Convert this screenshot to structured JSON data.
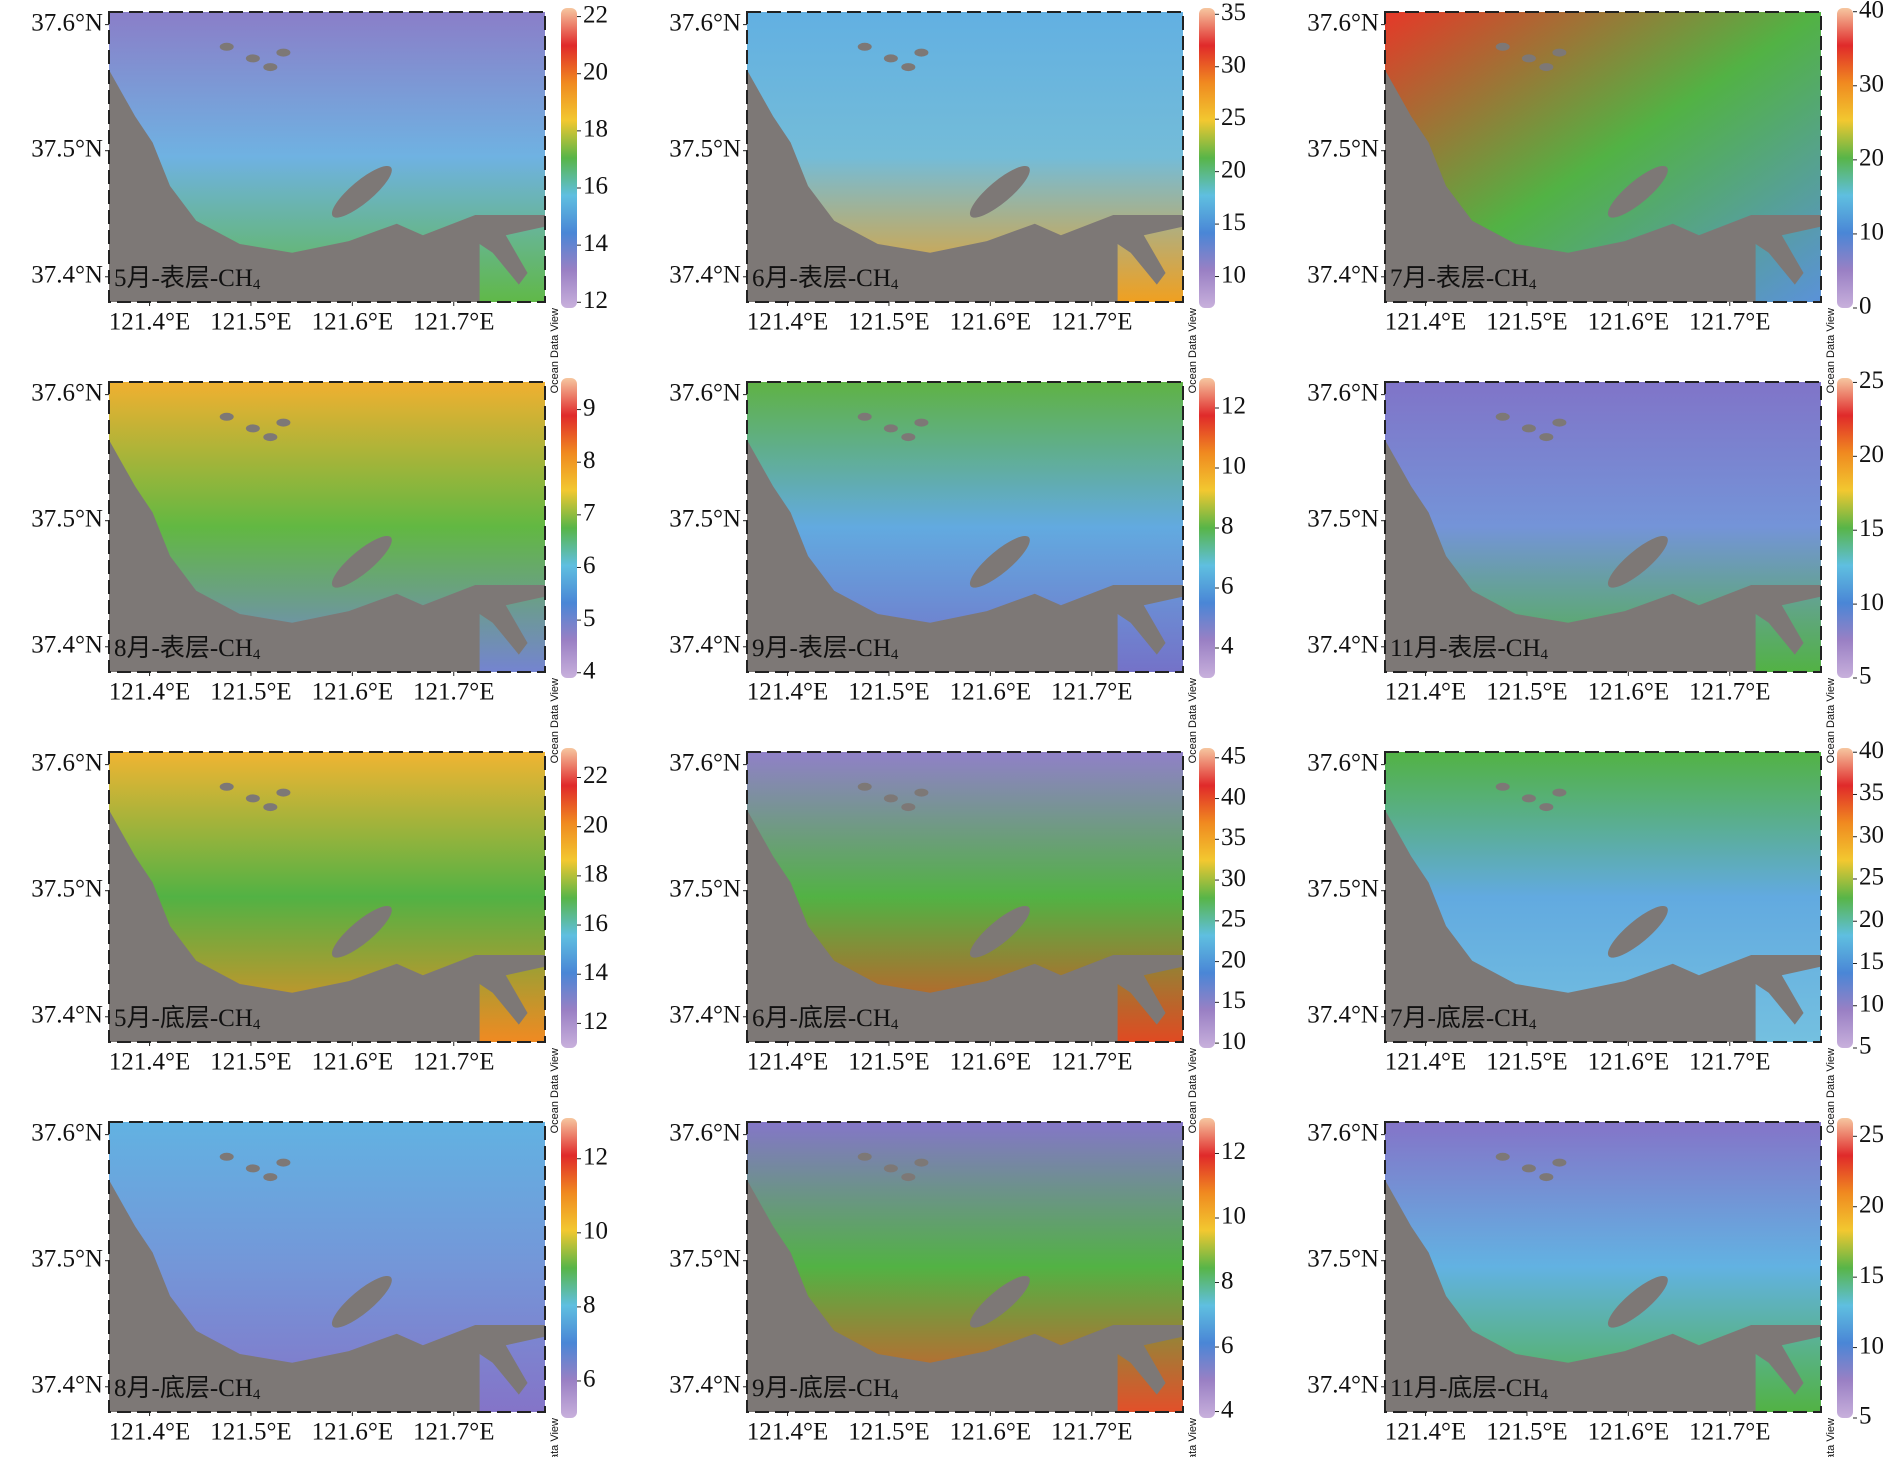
{
  "axes": {
    "xlim": [
      121.36,
      121.79
    ],
    "ylim": [
      37.38,
      37.61
    ],
    "lat_ticks": [
      {
        "value": 37.6,
        "label": "37.6°N"
      },
      {
        "value": 37.5,
        "label": "37.5°N"
      },
      {
        "value": 37.4,
        "label": "37.4°N"
      }
    ],
    "lon_ticks": [
      {
        "value": 121.4,
        "label": "121.4°E"
      },
      {
        "value": 121.5,
        "label": "121.5°E"
      },
      {
        "value": 121.6,
        "label": "121.6°E"
      },
      {
        "value": 121.7,
        "label": "121.7°E"
      }
    ]
  },
  "watermark": "Ocean Data View",
  "panels": [
    {
      "label": {
        "text": "5月-表层-CH",
        "sub": "4"
      },
      "colorbar": {
        "clim": [
          11.8,
          22.3
        ],
        "ticks": [
          12,
          14,
          16,
          18,
          20,
          22
        ]
      }
    },
    {
      "label": {
        "text": "6月-表层-CH",
        "sub": "4"
      },
      "colorbar": {
        "clim": [
          7,
          35.6
        ],
        "ticks": [
          10,
          15,
          20,
          25,
          30,
          35
        ]
      }
    },
    {
      "label": {
        "text": "7月-表层-CH",
        "sub": "4"
      },
      "colorbar": {
        "clim": [
          0,
          40.5
        ],
        "ticks": [
          0,
          10,
          20,
          30,
          40
        ]
      }
    },
    {
      "label": {
        "text": "8月-表层-CH",
        "sub": "4"
      },
      "colorbar": {
        "clim": [
          3.9,
          9.6
        ],
        "ticks": [
          4,
          5,
          6,
          7,
          8,
          9
        ]
      }
    },
    {
      "label": {
        "text": "9月-表层-CH",
        "sub": "4"
      },
      "colorbar": {
        "clim": [
          3,
          13
        ],
        "ticks": [
          4,
          6,
          8,
          10,
          12
        ]
      }
    },
    {
      "label": {
        "text": "11月-表层-CH",
        "sub": "4"
      },
      "colorbar": {
        "clim": [
          5,
          25.3
        ],
        "ticks": [
          5,
          10,
          15,
          20,
          25
        ]
      }
    },
    {
      "label": {
        "text": "5月-底层-CH",
        "sub": "4"
      },
      "colorbar": {
        "clim": [
          11,
          23.2
        ],
        "ticks": [
          12,
          14,
          16,
          18,
          20,
          22
        ]
      }
    },
    {
      "label": {
        "text": "6月-底层-CH",
        "sub": "4"
      },
      "colorbar": {
        "clim": [
          9.4,
          46.2
        ],
        "ticks": [
          10,
          15,
          20,
          25,
          30,
          35,
          40,
          45
        ]
      }
    },
    {
      "label": {
        "text": "7月-底层-CH",
        "sub": "4"
      },
      "colorbar": {
        "clim": [
          5,
          40.5
        ],
        "ticks": [
          5,
          10,
          15,
          20,
          25,
          30,
          35,
          40
        ]
      }
    },
    {
      "label": {
        "text": "8月-底层-CH",
        "sub": "4"
      },
      "colorbar": {
        "clim": [
          5,
          13.1
        ],
        "ticks": [
          6,
          8,
          10,
          12
        ]
      }
    },
    {
      "label": {
        "text": "9月-底层-CH",
        "sub": "4"
      },
      "colorbar": {
        "clim": [
          3.8,
          13.1
        ],
        "ticks": [
          4,
          6,
          8,
          10,
          12
        ]
      }
    },
    {
      "label": {
        "text": "11月-底层-CH",
        "sub": "4"
      },
      "colorbar": {
        "clim": [
          5,
          26.3
        ],
        "ticks": [
          5,
          10,
          15,
          20,
          25
        ]
      }
    }
  ]
}
